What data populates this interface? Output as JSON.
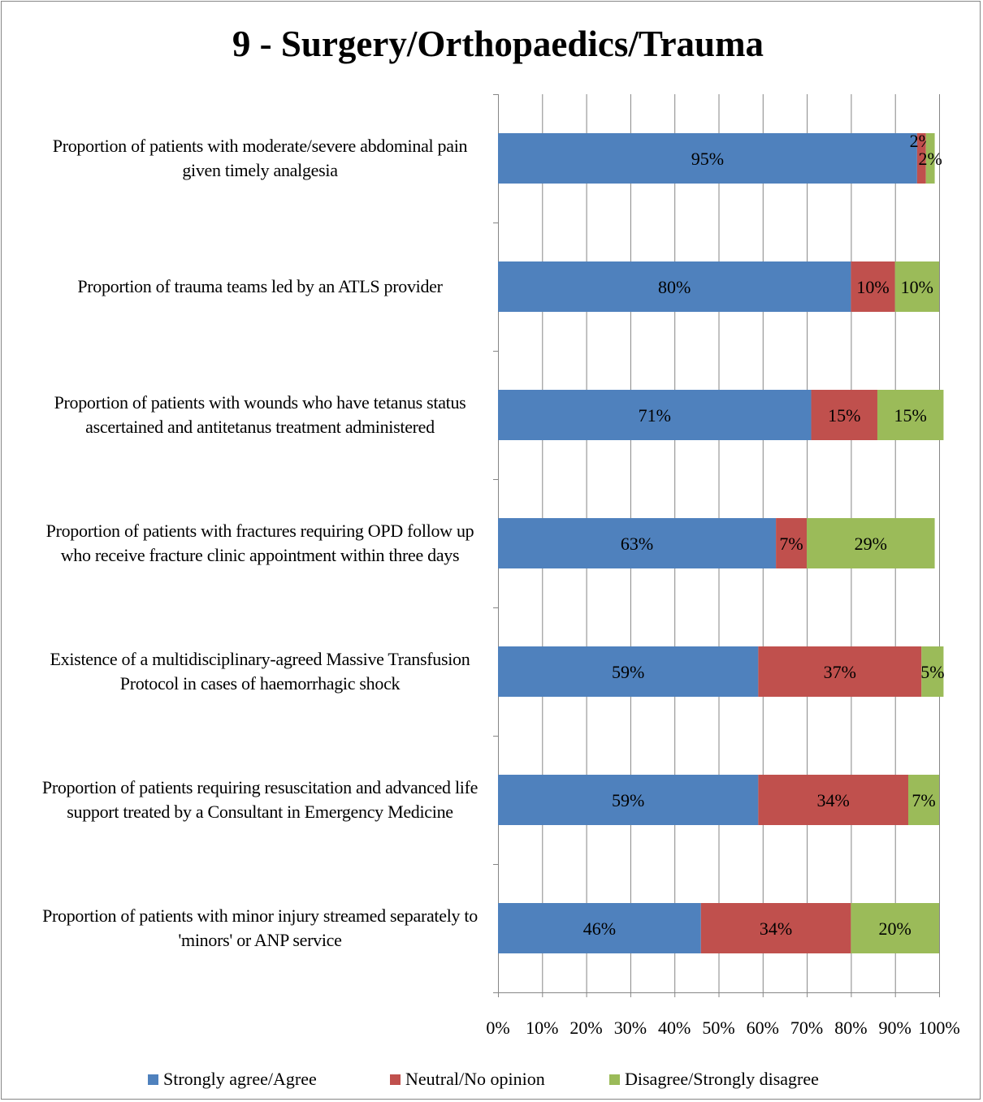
{
  "chart_data": {
    "type": "bar",
    "orientation": "horizontal",
    "stacked": true,
    "title": "9 - Surgery/Orthopaedics/Trauma",
    "categories": [
      "Proportion of patients with moderate/severe abdominal pain given timely analgesia",
      "Proportion of trauma teams led by an ATLS provider",
      "Proportion of patients with wounds who have tetanus status ascertained and antitetanus treatment administered",
      "Proportion of patients with fractures requiring OPD follow up who receive fracture clinic appointment within three days",
      "Existence of a multidisciplinary-agreed Massive Transfusion Protocol in cases of haemorrhagic shock",
      "Proportion of patients requiring resuscitation and advanced life support treated by a Consultant in Emergency Medicine",
      "Proportion of patients with minor injury streamed separately to 'minors' or ANP service"
    ],
    "series": [
      {
        "name": "Strongly agree/Agree",
        "color": "#4F81BD",
        "values": [
          95,
          80,
          71,
          63,
          59,
          59,
          46
        ]
      },
      {
        "name": "Neutral/No opinion",
        "color": "#C0504D",
        "values": [
          2,
          10,
          15,
          7,
          37,
          34,
          34
        ]
      },
      {
        "name": "Disagree/Strongly disagree",
        "color": "#9BBB59",
        "values": [
          2,
          10,
          15,
          29,
          5,
          7,
          20
        ]
      }
    ],
    "xlim": [
      0,
      100
    ],
    "x_ticks": [
      "0%",
      "10%",
      "20%",
      "30%",
      "40%",
      "50%",
      "60%",
      "70%",
      "80%",
      "90%",
      "100%"
    ],
    "grid": true,
    "legend_position": "bottom"
  }
}
